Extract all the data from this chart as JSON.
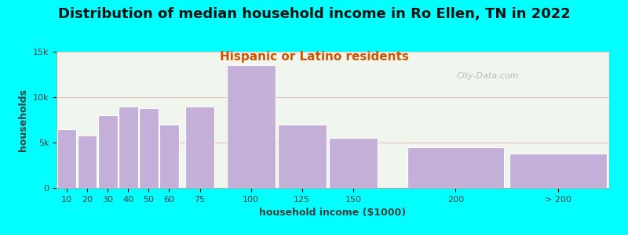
{
  "title": "Distribution of median household income in Ro Ellen, TN in 2022",
  "subtitle": "Hispanic or Latino residents",
  "xlabel": "household income ($1000)",
  "ylabel": "households",
  "background_color": "#00FFFF",
  "plot_bg_color": "#f0f5ee",
  "bar_color": "#c4afd9",
  "bar_edge_color": "#ffffff",
  "categories": [
    "10",
    "20",
    "30",
    "40",
    "50",
    "60",
    "75",
    "100",
    "125",
    "150",
    "200",
    "> 200"
  ],
  "left_edges": [
    5,
    15,
    25,
    35,
    45,
    55,
    67.5,
    87.5,
    112.5,
    137.5,
    175,
    225
  ],
  "widths": [
    10,
    10,
    10,
    10,
    10,
    10,
    15,
    25,
    25,
    25,
    50,
    50
  ],
  "values": [
    6500,
    5800,
    8000,
    9000,
    8800,
    7000,
    9000,
    13500,
    7000,
    5500,
    4500,
    3800
  ],
  "ylim": [
    0,
    15000
  ],
  "yticks": [
    0,
    5000,
    10000,
    15000
  ],
  "ytick_labels": [
    "0",
    "5k",
    "10k",
    "15k"
  ],
  "title_fontsize": 13,
  "subtitle_fontsize": 11,
  "axis_label_fontsize": 9,
  "tick_fontsize": 8,
  "watermark_text": "City-Data.com",
  "watermark_color": "#aaaaaa",
  "grid_color": "#e8a0a0",
  "grid_alpha": 0.6,
  "subtitle_color": "#cc5500",
  "title_color": "#111111"
}
